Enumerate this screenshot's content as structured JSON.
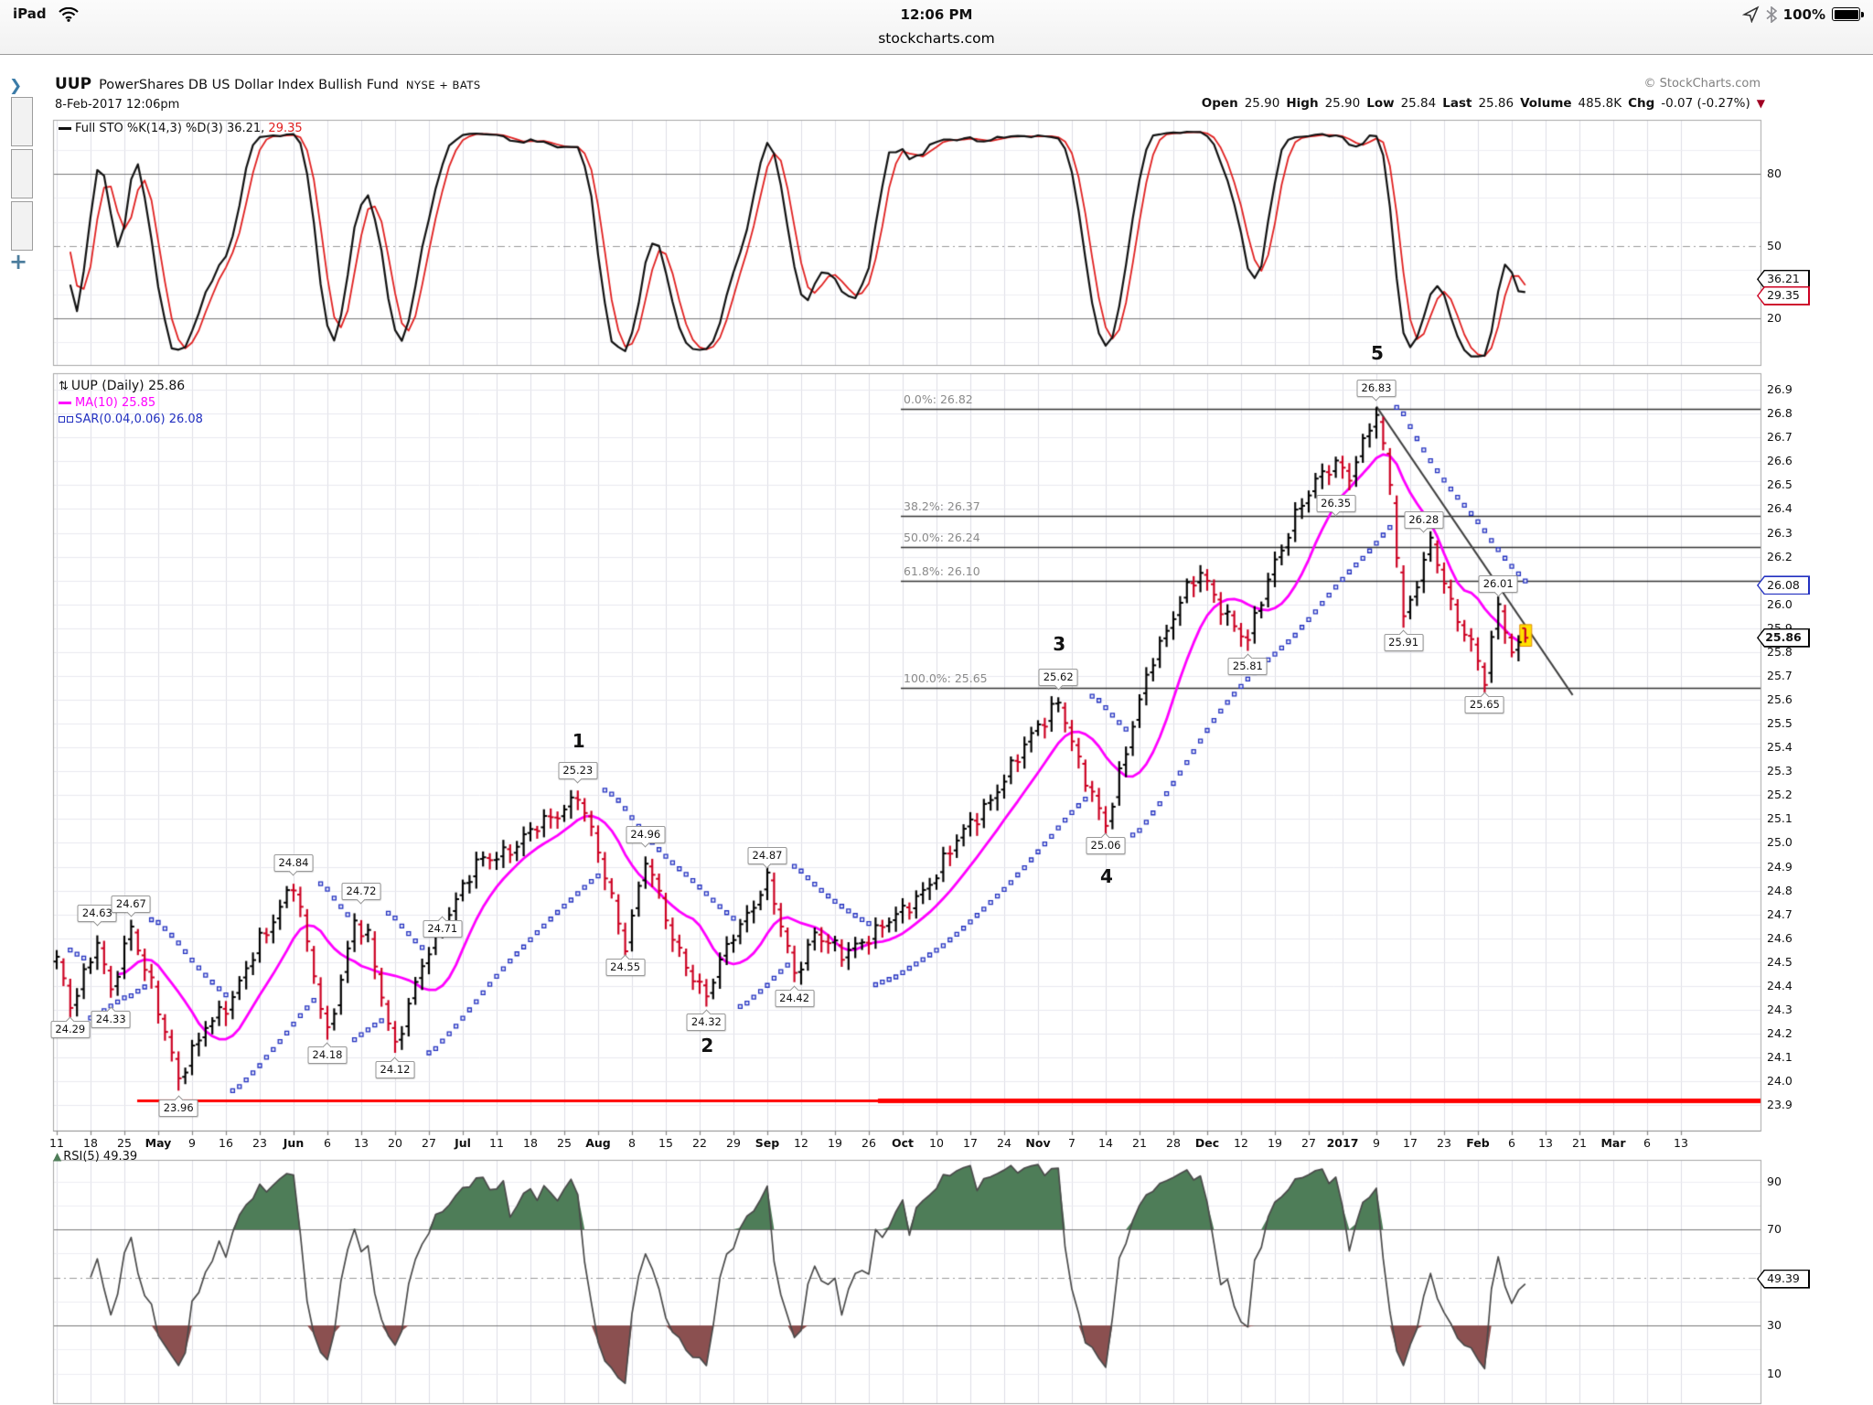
{
  "status_bar": {
    "carrier": "iPad",
    "time": "12:06 PM",
    "battery": "100%"
  },
  "browser": {
    "site": "stockcharts.com"
  },
  "sidebar": {
    "expand": "❯",
    "add": "+"
  },
  "header": {
    "symbol": "UUP",
    "name": "PowerShares DB US Dollar Index Bullish Fund",
    "exchange": "NYSE + BATS",
    "datetime": "8-Feb-2017 12:06pm",
    "copyright": "© StockCharts.com",
    "quote": [
      {
        "label": "Open",
        "value": "25.90"
      },
      {
        "label": "High",
        "value": "25.90"
      },
      {
        "label": "Low",
        "value": "25.84"
      },
      {
        "label": "Last",
        "value": "25.86"
      },
      {
        "label": "Volume",
        "value": "485.8K"
      },
      {
        "label": "Chg",
        "value": "-0.07 (-0.27%)"
      }
    ],
    "chg_direction": "▼"
  },
  "chart_data": {
    "type": "ohlc-bar",
    "symbol": "UUP",
    "timeframe": "Daily",
    "days": 218,
    "colors": {
      "up": "#000000",
      "down": "#cc0022",
      "ma": "#ff00ff",
      "sar": "#2230c0",
      "stoch_k": "#111111",
      "stoch_d": "#e02020",
      "support": "#ff0000",
      "fib": "#333333",
      "rsi_line": "#4a4a4a",
      "rsi_over": "#4e7d58",
      "rsi_under": "#8b5050",
      "trend": "#404040"
    },
    "x_axis": {
      "labels": [
        {
          "t": "11",
          "b": 0
        },
        {
          "t": "18",
          "b": 0
        },
        {
          "t": "25",
          "b": 0
        },
        {
          "t": "May",
          "b": 1
        },
        {
          "t": "9",
          "b": 0
        },
        {
          "t": "16",
          "b": 0
        },
        {
          "t": "23",
          "b": 0
        },
        {
          "t": "Jun",
          "b": 1
        },
        {
          "t": "6",
          "b": 0
        },
        {
          "t": "13",
          "b": 0
        },
        {
          "t": "20",
          "b": 0
        },
        {
          "t": "27",
          "b": 0
        },
        {
          "t": "Jul",
          "b": 1
        },
        {
          "t": "11",
          "b": 0
        },
        {
          "t": "18",
          "b": 0
        },
        {
          "t": "25",
          "b": 0
        },
        {
          "t": "Aug",
          "b": 1
        },
        {
          "t": "8",
          "b": 0
        },
        {
          "t": "15",
          "b": 0
        },
        {
          "t": "22",
          "b": 0
        },
        {
          "t": "29",
          "b": 0
        },
        {
          "t": "Sep",
          "b": 1
        },
        {
          "t": "12",
          "b": 0
        },
        {
          "t": "19",
          "b": 0
        },
        {
          "t": "26",
          "b": 0
        },
        {
          "t": "Oct",
          "b": 1
        },
        {
          "t": "10",
          "b": 0
        },
        {
          "t": "17",
          "b": 0
        },
        {
          "t": "24",
          "b": 0
        },
        {
          "t": "Nov",
          "b": 1
        },
        {
          "t": "7",
          "b": 0
        },
        {
          "t": "14",
          "b": 0
        },
        {
          "t": "21",
          "b": 0
        },
        {
          "t": "28",
          "b": 0
        },
        {
          "t": "Dec",
          "b": 1
        },
        {
          "t": "12",
          "b": 0
        },
        {
          "t": "19",
          "b": 0
        },
        {
          "t": "27",
          "b": 0
        },
        {
          "t": "2017",
          "b": 1
        },
        {
          "t": "9",
          "b": 0
        },
        {
          "t": "17",
          "b": 0
        },
        {
          "t": "23",
          "b": 0
        },
        {
          "t": "Feb",
          "b": 1
        },
        {
          "t": "6",
          "b": 0
        },
        {
          "t": "13",
          "b": 0
        },
        {
          "t": "21",
          "b": 0
        },
        {
          "t": "Mar",
          "b": 1
        },
        {
          "t": "6",
          "b": 0
        },
        {
          "t": "13",
          "b": 0
        }
      ]
    },
    "stochastic": {
      "legend": "Full STO %K(14,3) %D(3)",
      "k_value": "36.21",
      "d_value": "29.35",
      "k_period": 14,
      "k_smooth": 3,
      "d_period": 3,
      "axis_labels": [
        80,
        50,
        20
      ],
      "overbought": 80,
      "midline": 50,
      "oversold": 20
    },
    "price_panel": {
      "legend": "UUP (Daily)",
      "last_value": "25.86",
      "axis": {
        "min": 23.9,
        "max": 26.9,
        "step": 0.1
      },
      "ma": {
        "label": "MA(10)",
        "period": 10,
        "value": "25.85"
      },
      "sar": {
        "label": "SAR(0.04,0.06)",
        "step": 0.04,
        "max": 0.06,
        "value": "26.08"
      },
      "fib_levels": [
        {
          "pct": "0.0%",
          "value": 26.82
        },
        {
          "pct": "38.2%",
          "value": 26.37
        },
        {
          "pct": "50.0%",
          "value": 26.24
        },
        {
          "pct": "61.8%",
          "value": 26.1
        },
        {
          "pct": "100.0%",
          "value": 25.65
        }
      ],
      "support_line": {
        "value": 23.92
      },
      "trend_line": {
        "d1": 195,
        "p1": 26.83,
        "d2": 224,
        "p2": 25.62
      },
      "anchors": [
        [
          0,
          24.5
        ],
        [
          2,
          24.31
        ],
        [
          6,
          24.6
        ],
        [
          8,
          24.36
        ],
        [
          11,
          24.64
        ],
        [
          14,
          24.42
        ],
        [
          18,
          23.99
        ],
        [
          22,
          24.25
        ],
        [
          26,
          24.33
        ],
        [
          30,
          24.6
        ],
        [
          35,
          24.82
        ],
        [
          38,
          24.45
        ],
        [
          40,
          24.21
        ],
        [
          44,
          24.65
        ],
        [
          46,
          24.6
        ],
        [
          50,
          24.15
        ],
        [
          55,
          24.55
        ],
        [
          57,
          24.68
        ],
        [
          62,
          24.9
        ],
        [
          68,
          25.0
        ],
        [
          73,
          25.1
        ],
        [
          77,
          25.21
        ],
        [
          80,
          24.95
        ],
        [
          84,
          24.58
        ],
        [
          87,
          24.93
        ],
        [
          91,
          24.6
        ],
        [
          96,
          24.35
        ],
        [
          100,
          24.62
        ],
        [
          105,
          24.84
        ],
        [
          109,
          24.45
        ],
        [
          112,
          24.63
        ],
        [
          116,
          24.52
        ],
        [
          120,
          24.62
        ],
        [
          125,
          24.7
        ],
        [
          130,
          24.88
        ],
        [
          136,
          25.12
        ],
        [
          141,
          25.3
        ],
        [
          145,
          25.5
        ],
        [
          148,
          25.6
        ],
        [
          151,
          25.32
        ],
        [
          155,
          25.09
        ],
        [
          158,
          25.38
        ],
        [
          162,
          25.78
        ],
        [
          166,
          26.02
        ],
        [
          169,
          26.12
        ],
        [
          172,
          26.0
        ],
        [
          176,
          25.84
        ],
        [
          180,
          26.18
        ],
        [
          183,
          26.38
        ],
        [
          186,
          26.5
        ],
        [
          189,
          26.6
        ],
        [
          191,
          26.55
        ],
        [
          195,
          26.79
        ],
        [
          197,
          26.5
        ],
        [
          199,
          25.95
        ],
        [
          203,
          26.25
        ],
        [
          206,
          26.0
        ],
        [
          209,
          25.85
        ],
        [
          211,
          25.68
        ],
        [
          213,
          25.98
        ],
        [
          215,
          25.8
        ],
        [
          217,
          25.86
        ]
      ],
      "last_bar": {
        "open": 25.9,
        "high": 25.9,
        "low": 25.84,
        "close": 25.86,
        "highlight": true
      },
      "callouts": [
        {
          "d": 2,
          "p": 24.29,
          "t": "24.29",
          "side": "below"
        },
        {
          "d": 6,
          "p": 24.63,
          "t": "24.63",
          "side": "above"
        },
        {
          "d": 8,
          "p": 24.33,
          "t": "24.33",
          "side": "below"
        },
        {
          "d": 11,
          "p": 24.67,
          "t": "24.67",
          "side": "above"
        },
        {
          "d": 18,
          "p": 23.96,
          "t": "23.96",
          "side": "below"
        },
        {
          "d": 35,
          "p": 24.84,
          "t": "24.84",
          "side": "above"
        },
        {
          "d": 40,
          "p": 24.18,
          "t": "24.18",
          "side": "below"
        },
        {
          "d": 45,
          "p": 24.72,
          "t": "24.72",
          "side": "above"
        },
        {
          "d": 50,
          "p": 24.12,
          "t": "24.12",
          "side": "below"
        },
        {
          "d": 57,
          "p": 24.71,
          "t": "24.71",
          "side": "below"
        },
        {
          "d": 77,
          "p": 25.23,
          "t": "25.23",
          "side": "above"
        },
        {
          "d": 84,
          "p": 24.55,
          "t": "24.55",
          "side": "below"
        },
        {
          "d": 87,
          "p": 24.96,
          "t": "24.96",
          "side": "above"
        },
        {
          "d": 96,
          "p": 24.32,
          "t": "24.32",
          "side": "below"
        },
        {
          "d": 105,
          "p": 24.87,
          "t": "24.87",
          "side": "above"
        },
        {
          "d": 109,
          "p": 24.42,
          "t": "24.42",
          "side": "below"
        },
        {
          "d": 148,
          "p": 25.62,
          "t": "25.62",
          "side": "above"
        },
        {
          "d": 155,
          "p": 25.06,
          "t": "25.06",
          "side": "below"
        },
        {
          "d": 176,
          "p": 25.81,
          "t": "25.81",
          "side": "below"
        },
        {
          "d": 189,
          "p": 26.35,
          "t": "26.35",
          "side": "above"
        },
        {
          "d": 195,
          "p": 26.83,
          "t": "26.83",
          "side": "above"
        },
        {
          "d": 199,
          "p": 25.91,
          "t": "25.91",
          "side": "below"
        },
        {
          "d": 202,
          "p": 26.28,
          "t": "26.28",
          "side": "above"
        },
        {
          "d": 211,
          "p": 25.65,
          "t": "25.65",
          "side": "below"
        },
        {
          "d": 213,
          "p": 26.01,
          "t": "26.01",
          "side": "above"
        }
      ],
      "waves": [
        {
          "t": "1",
          "d": 77,
          "p": 25.23,
          "side": "above",
          "off": 40
        },
        {
          "t": "2",
          "d": 96,
          "p": 24.32,
          "side": "below",
          "off": 44
        },
        {
          "t": "3",
          "d": 148,
          "p": 25.62,
          "side": "above",
          "off": 44
        },
        {
          "t": "4",
          "d": 155,
          "p": 25.06,
          "side": "below",
          "off": 52
        },
        {
          "t": "5",
          "d": 195,
          "p": 26.83,
          "side": "above",
          "off": 46
        }
      ],
      "axis_pills": [
        {
          "t": "26.08",
          "color": "#2230c0",
          "price": 26.08,
          "bold": 0
        },
        {
          "t": "25.86",
          "color": "#000000",
          "price": 25.86,
          "bold": 1
        }
      ]
    },
    "rsi": {
      "legend": "RSI(5)",
      "period": 5,
      "value": "49.39",
      "axis_labels": [
        90,
        70,
        30,
        10
      ],
      "overbought": 70,
      "midline": 50,
      "oversold": 30
    },
    "stoch_pills": [
      {
        "t": "36.21",
        "color": "#000000",
        "v": 36.21,
        "bold": 0
      },
      {
        "t": "29.35",
        "color": "#cc0022",
        "v": 29.35,
        "bold": 0
      }
    ],
    "rsi_pill": {
      "t": "49.39",
      "color": "#000000",
      "v": 49.39,
      "bold": 0
    }
  }
}
